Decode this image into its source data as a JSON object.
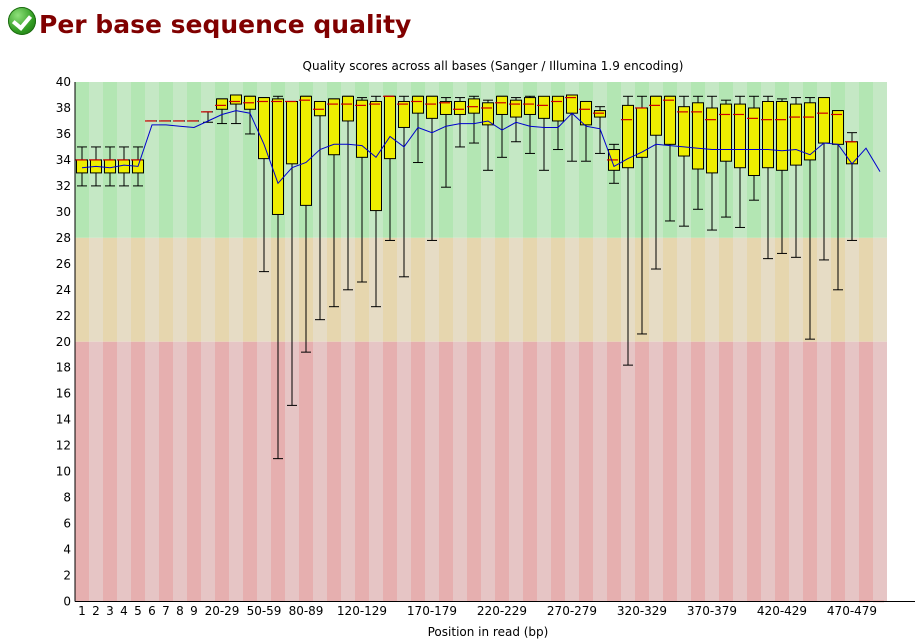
{
  "header": {
    "title": "Per base sequence quality",
    "status_icon": "check-icon"
  },
  "colors": {
    "good_a": "#b3e6b3",
    "good_b": "#c5e8c5",
    "warn_a": "#e6d6ae",
    "warn_b": "#e6dcc5",
    "bad_a": "#e6afaf",
    "bad_b": "#e6c5c5",
    "box": "#eeee00",
    "median": "#cc0000",
    "mean": "#0000cc"
  },
  "chart_data": {
    "type": "boxplot",
    "title": "Quality scores across all bases (Sanger / Illumina 1.9 encoding)",
    "xlabel": "Position in read (bp)",
    "ylabel": "",
    "ylim": [
      0,
      40
    ],
    "yticks": [
      0,
      2,
      4,
      6,
      8,
      10,
      12,
      14,
      16,
      18,
      20,
      22,
      24,
      26,
      28,
      30,
      32,
      34,
      36,
      38,
      40
    ],
    "zones": [
      {
        "name": "good",
        "from": 28,
        "to": 40
      },
      {
        "name": "warning",
        "from": 20,
        "to": 28
      },
      {
        "name": "poor",
        "from": 0,
        "to": 20
      }
    ],
    "categories": [
      "1",
      "2",
      "3",
      "4",
      "5",
      "6",
      "7",
      "8",
      "9",
      "10-19",
      "20-29",
      "30-39",
      "40-49",
      "50-59",
      "60-69",
      "70-79",
      "80-89",
      "90-99",
      "100-109",
      "110-119",
      "120-129",
      "130-139",
      "140-149",
      "150-159",
      "160-169",
      "170-179",
      "180-189",
      "190-199",
      "200-209",
      "210-219",
      "220-229",
      "230-239",
      "240-249",
      "250-259",
      "260-269",
      "270-279",
      "280-289",
      "290-299",
      "300-309",
      "310-319",
      "320-329",
      "330-339",
      "340-349",
      "350-359",
      "360-369",
      "370-379",
      "380-389",
      "390-399",
      "400-409",
      "410-419",
      "420-429",
      "430-439",
      "440-449",
      "450-459",
      "460-469",
      "470-479",
      "480-489",
      "490-499"
    ],
    "xtick_labels": [
      "1",
      "2",
      "3",
      "4",
      "5",
      "6",
      "7",
      "8",
      "9",
      "20-29",
      "50-59",
      "80-89",
      "120-129",
      "170-179",
      "220-229",
      "270-279",
      "320-329",
      "370-379",
      "420-429",
      "470-479"
    ],
    "series": [
      {
        "name": "whisker_high",
        "values": [
          35,
          35,
          35,
          35,
          35,
          37,
          37,
          37,
          37,
          37.7,
          38.7,
          39,
          38.9,
          38.8,
          38.9,
          38.5,
          38.9,
          38.5,
          38.7,
          38.9,
          38.8,
          38.9,
          38.9,
          38.9,
          38.9,
          38.9,
          38.8,
          38.8,
          38.9,
          38.6,
          38.9,
          38.8,
          38.9,
          38.8,
          38.8,
          39,
          38.5,
          38.1,
          35.2,
          38.9,
          38.9,
          38.9,
          38.9,
          38.9,
          38.9,
          38.9,
          38.6,
          38.9,
          38.9,
          38.9,
          38.7,
          38.8,
          38.8,
          38.8,
          37.8,
          36.1,
          0,
          0
        ]
      },
      {
        "name": "q3",
        "values": [
          34,
          34,
          34,
          34,
          34,
          37,
          37,
          37,
          37,
          37.7,
          38.7,
          39,
          38.9,
          38.8,
          38.7,
          38.5,
          38.9,
          38.5,
          38.7,
          38.9,
          38.6,
          38.5,
          38.9,
          38.5,
          38.9,
          38.9,
          38.5,
          38.5,
          38.7,
          38.4,
          38.9,
          38.6,
          38.8,
          38.9,
          38.9,
          39,
          38.5,
          37.8,
          34.8,
          38.2,
          38,
          38.9,
          38.9,
          38.1,
          38.4,
          38,
          38.3,
          38.3,
          38,
          38.5,
          38.5,
          38.3,
          38.4,
          38.8,
          37.8,
          35.4,
          0,
          0
        ]
      },
      {
        "name": "median",
        "values": [
          34,
          34,
          34,
          34,
          34,
          37,
          37,
          37,
          37,
          37.7,
          38.2,
          38.5,
          38.4,
          38.5,
          38.5,
          38.5,
          38.6,
          37.9,
          38.3,
          38.3,
          38.2,
          38.3,
          38.9,
          38.3,
          38.5,
          38.3,
          38.4,
          37.9,
          38.1,
          38,
          38.4,
          38.3,
          38.3,
          38.2,
          38.5,
          38.8,
          37.9,
          37.6,
          34,
          37.1,
          38,
          38.2,
          38.6,
          37.7,
          37.7,
          37.1,
          37.5,
          37.5,
          37.2,
          37.1,
          37.1,
          37.3,
          37.3,
          37.6,
          37.5,
          35.4,
          0,
          0
        ]
      },
      {
        "name": "q1",
        "values": [
          33,
          33,
          33,
          33,
          33,
          37,
          37,
          37,
          37,
          37.7,
          37.9,
          38.3,
          37.9,
          34.1,
          29.8,
          33.7,
          30.5,
          37.4,
          34.4,
          37,
          34.2,
          30.1,
          34.1,
          36.5,
          37.6,
          37.2,
          37.5,
          37.5,
          37.6,
          36.7,
          37.5,
          37.3,
          37.5,
          37.2,
          37,
          37.6,
          36.7,
          37.3,
          33.2,
          33.4,
          34.2,
          35.9,
          35.2,
          34.3,
          33.3,
          33,
          33.9,
          33.4,
          32.8,
          33.4,
          33.2,
          33.6,
          34,
          35.3,
          35.2,
          33.7,
          0,
          0
        ]
      },
      {
        "name": "whisker_low",
        "values": [
          32,
          32,
          32,
          32,
          32,
          37,
          37,
          37,
          37,
          36.9,
          36.8,
          36.8,
          36,
          25.4,
          11,
          15.1,
          19.2,
          21.7,
          22.7,
          24,
          24.6,
          22.7,
          27.8,
          25,
          33.8,
          27.8,
          31.9,
          35,
          35.3,
          33.2,
          34.2,
          35.4,
          34.5,
          33.2,
          34.8,
          33.9,
          33.9,
          34.5,
          32.2,
          18.2,
          20.6,
          25.6,
          29.3,
          28.9,
          30.2,
          28.6,
          29.6,
          28.8,
          30.9,
          26.4,
          26.8,
          26.5,
          20.2,
          26.3,
          24,
          27.8,
          0,
          0
        ]
      },
      {
        "name": "mean",
        "values": [
          33.4,
          33.5,
          33.4,
          33.6,
          33.5,
          36.7,
          36.7,
          36.6,
          36.5,
          37,
          37.5,
          37.8,
          37.6,
          35.2,
          32.2,
          33.4,
          33.8,
          34.8,
          35.2,
          35.2,
          35.1,
          34.2,
          35.8,
          35,
          36.5,
          36.1,
          36.6,
          36.8,
          36.8,
          37,
          36.3,
          36.9,
          36.6,
          36.5,
          36.5,
          37.6,
          36.6,
          36.4,
          33.5,
          34.1,
          34.6,
          35.2,
          35.1,
          35,
          34.9,
          34.8,
          34.8,
          34.8,
          34.8,
          34.8,
          34.7,
          34.8,
          34.4,
          35.3,
          35.2,
          33.7,
          34.9,
          33.1
        ]
      }
    ]
  }
}
